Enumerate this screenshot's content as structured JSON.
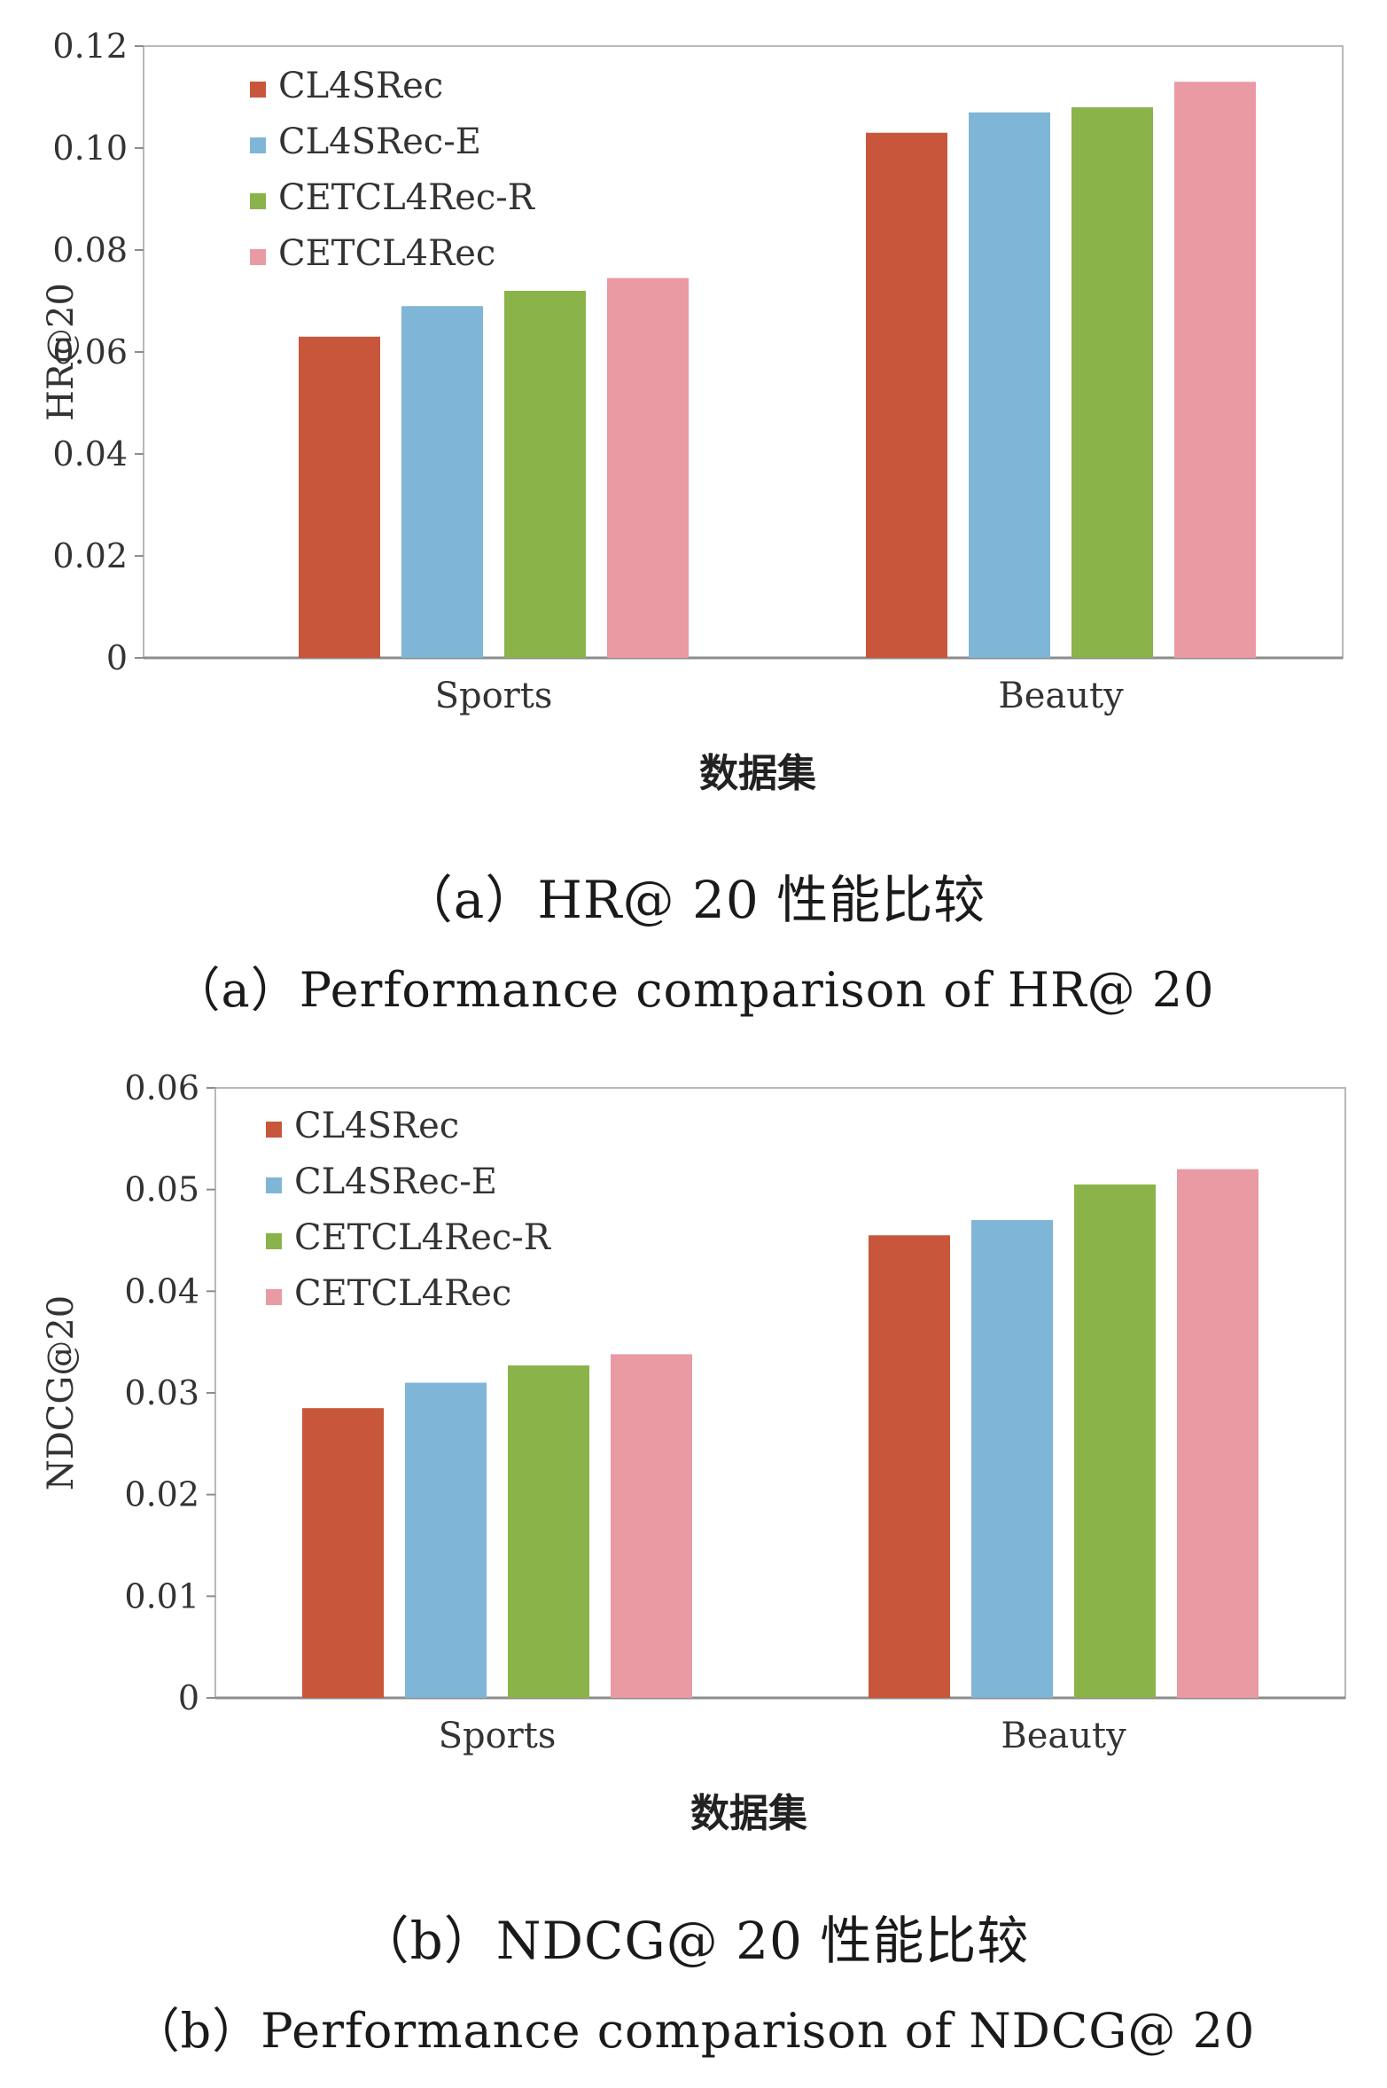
{
  "chart_data": [
    {
      "type": "bar",
      "title": "",
      "xlabel": "数据集",
      "ylabel": "HR@20",
      "ylim": [
        0,
        0.12
      ],
      "yticks": [
        "0",
        "0.02",
        "0.04",
        "0.06",
        "0.08",
        "0.10",
        "0.12"
      ],
      "categories": [
        "Sports",
        "Beauty"
      ],
      "legend_position": "top-left",
      "series": [
        {
          "name": "CL4SRec",
          "color": "#c8563a",
          "values": [
            0.063,
            0.103
          ]
        },
        {
          "name": "CL4SRec-E",
          "color": "#7fb5d6",
          "values": [
            0.069,
            0.107
          ]
        },
        {
          "name": "CETCL4Rec-R",
          "color": "#8ab34a",
          "values": [
            0.072,
            0.108
          ]
        },
        {
          "name": "CETCL4Rec",
          "color": "#e99aa3",
          "values": [
            0.0745,
            0.113
          ]
        }
      ]
    },
    {
      "type": "bar",
      "title": "",
      "xlabel": "数据集",
      "ylabel": "NDCG@20",
      "ylim": [
        0,
        0.06
      ],
      "yticks": [
        "0",
        "0.01",
        "0.02",
        "0.03",
        "0.04",
        "0.05",
        "0.06"
      ],
      "categories": [
        "Sports",
        "Beauty"
      ],
      "legend_position": "top-left",
      "series": [
        {
          "name": "CL4SRec",
          "color": "#c8563a",
          "values": [
            0.0285,
            0.0455
          ]
        },
        {
          "name": "CL4SRec-E",
          "color": "#7fb5d6",
          "values": [
            0.031,
            0.047
          ]
        },
        {
          "name": "CETCL4Rec-R",
          "color": "#8ab34a",
          "values": [
            0.0327,
            0.0505
          ]
        },
        {
          "name": "CETCL4Rec",
          "color": "#e99aa3",
          "values": [
            0.0338,
            0.052
          ]
        }
      ]
    }
  ],
  "captions": {
    "a_zh": "（a）HR@ 20 性能比较",
    "a_en": "（a）Performance comparison of HR@ 20",
    "b_zh": "（b）NDCG@ 20 性能比较",
    "b_en": "（b）Performance comparison of NDCG@ 20"
  }
}
